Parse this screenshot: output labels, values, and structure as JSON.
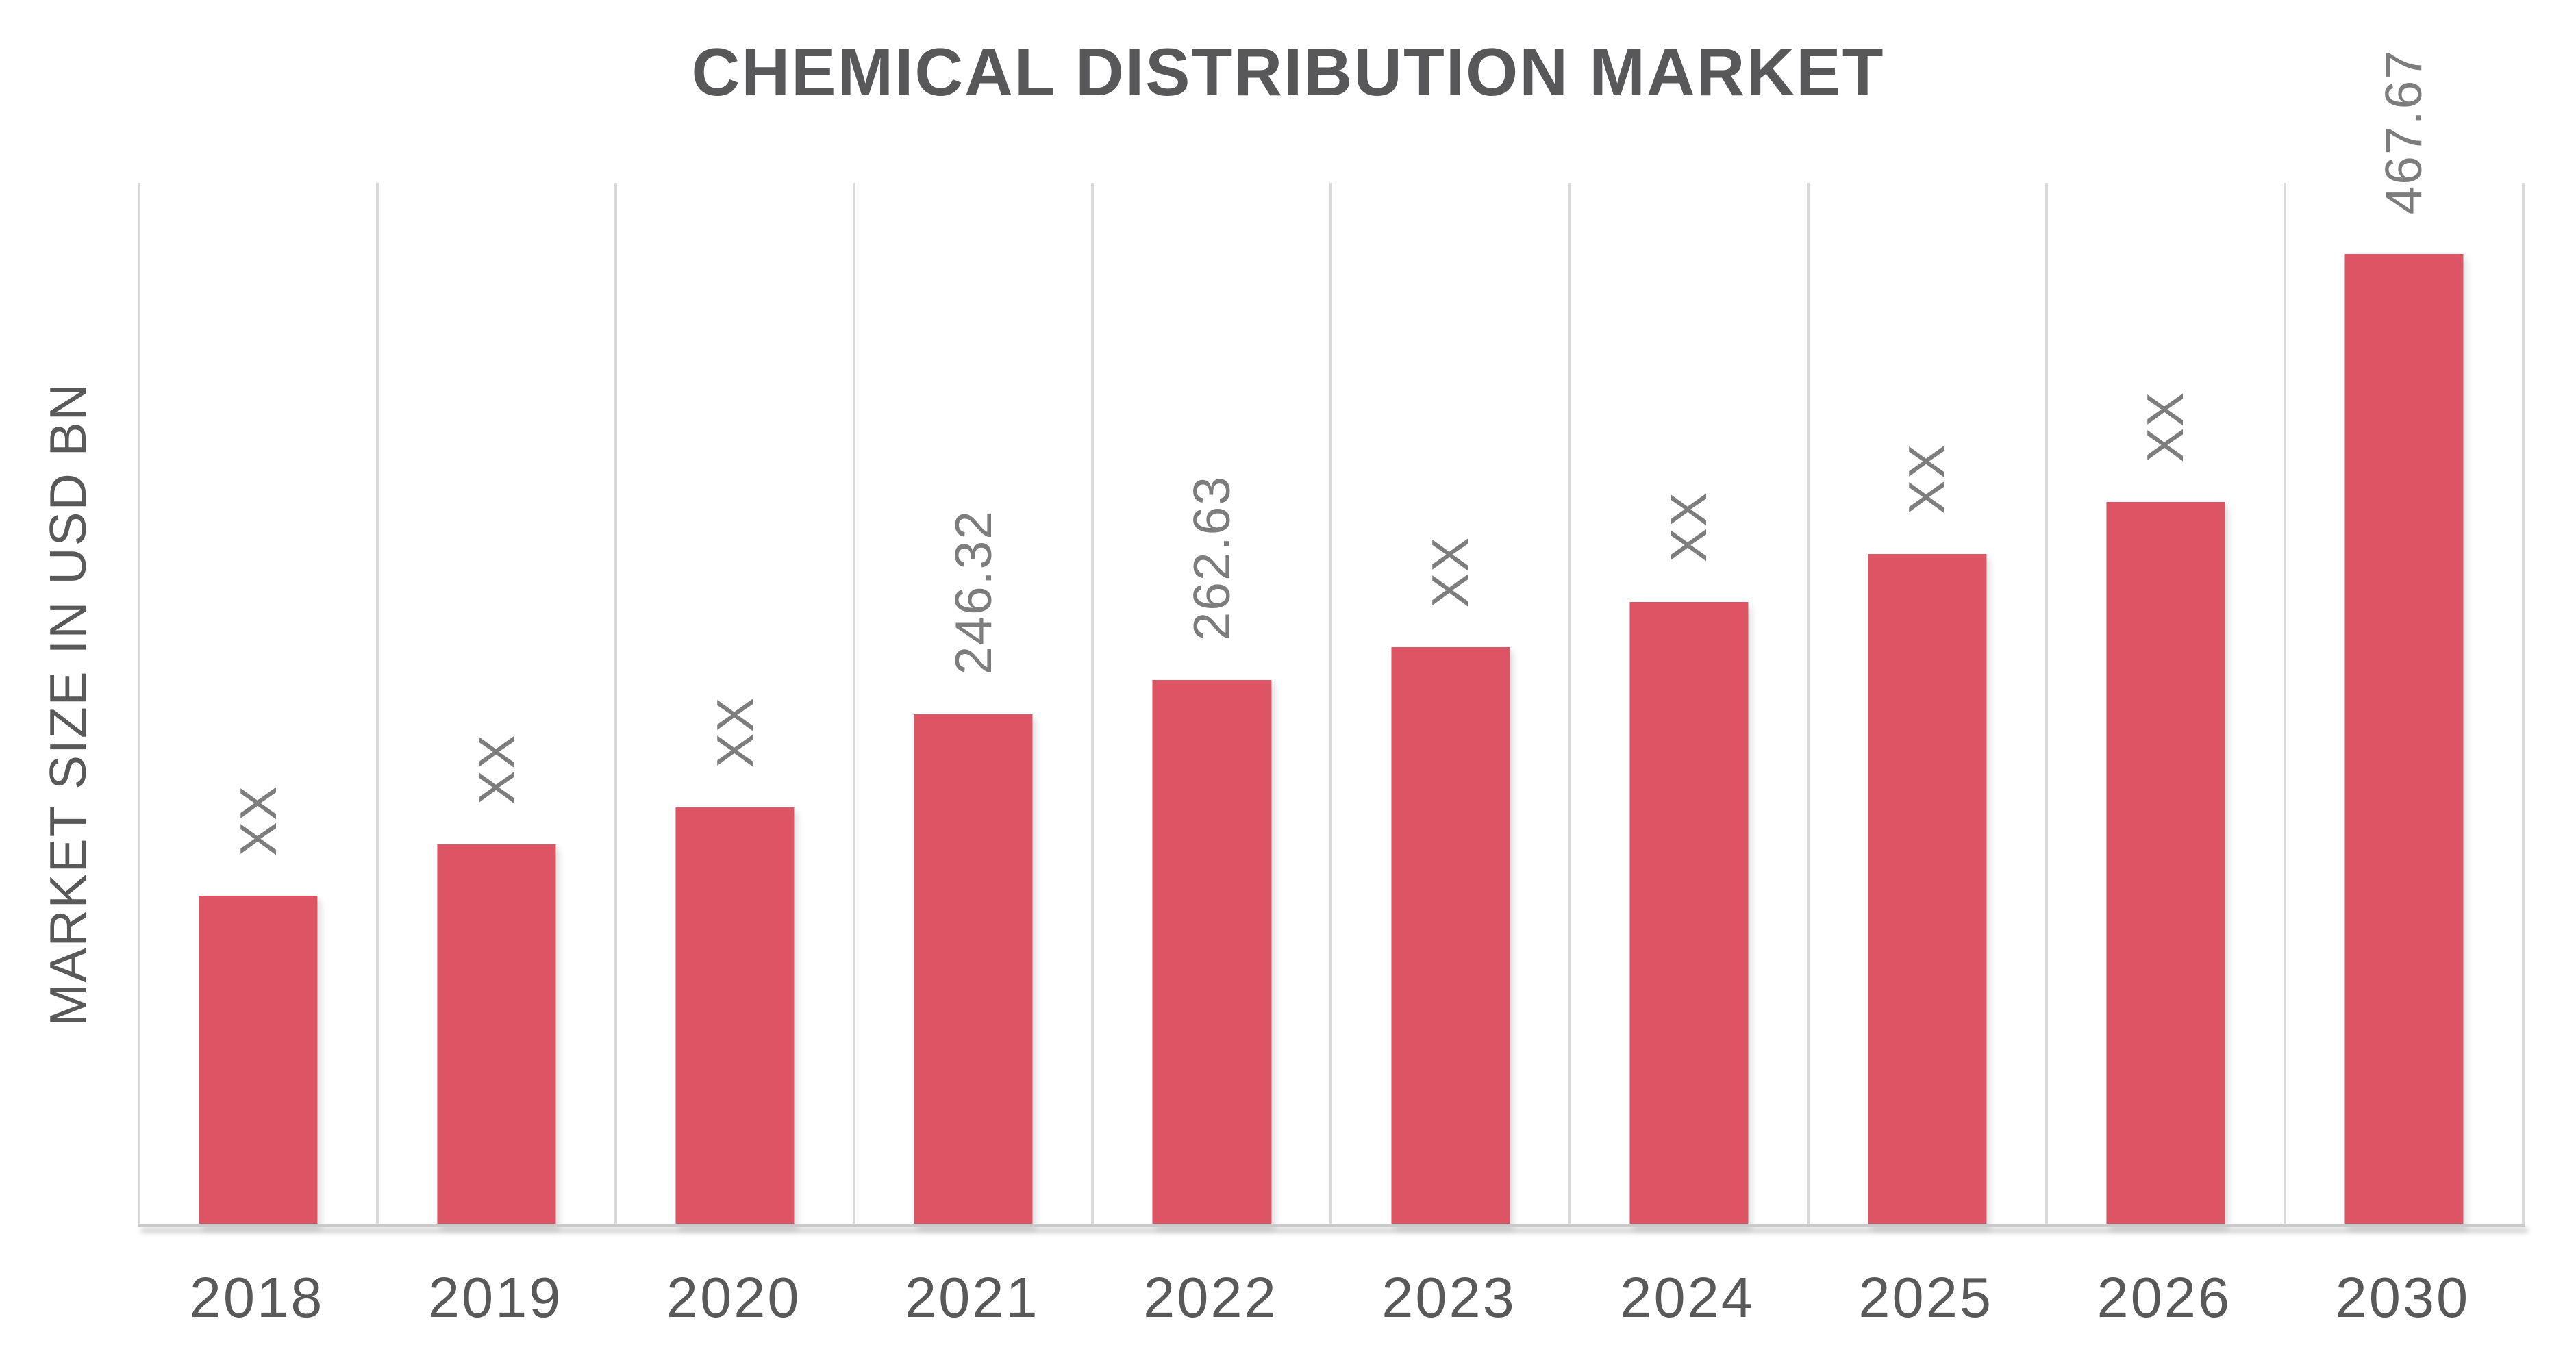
{
  "chart_data": {
    "type": "bar",
    "title": "CHEMICAL DISTRIBUTION MARKET",
    "ylabel": "MARKET SIZE IN USD BN",
    "xlabel": "",
    "categories": [
      "2018",
      "2019",
      "2020",
      "2021",
      "2022",
      "2023",
      "2024",
      "2025",
      "2026",
      "2030"
    ],
    "values": [
      158.9,
      183.6,
      201.4,
      246.32,
      262.63,
      278.5,
      300.3,
      323.4,
      348.4,
      467.67
    ],
    "bar_labels": [
      "XX",
      "XX",
      "XX",
      "246.32",
      "262.63",
      "XX",
      "XX",
      "XX",
      "XX",
      "467.67"
    ],
    "ylim": [
      0,
      502
    ],
    "grid": "vertical category separators only",
    "legend": "none",
    "bar_label_rotation": "90deg bottom-to-top",
    "colors": {
      "bar": "#dd5565",
      "title_text": "#58585a",
      "axis_text": "#595959",
      "value_label_text": "#7d7d7d",
      "gridline": "#d9d9d9",
      "axis_line": "#c9c9c9",
      "background": "#ffffff"
    }
  }
}
